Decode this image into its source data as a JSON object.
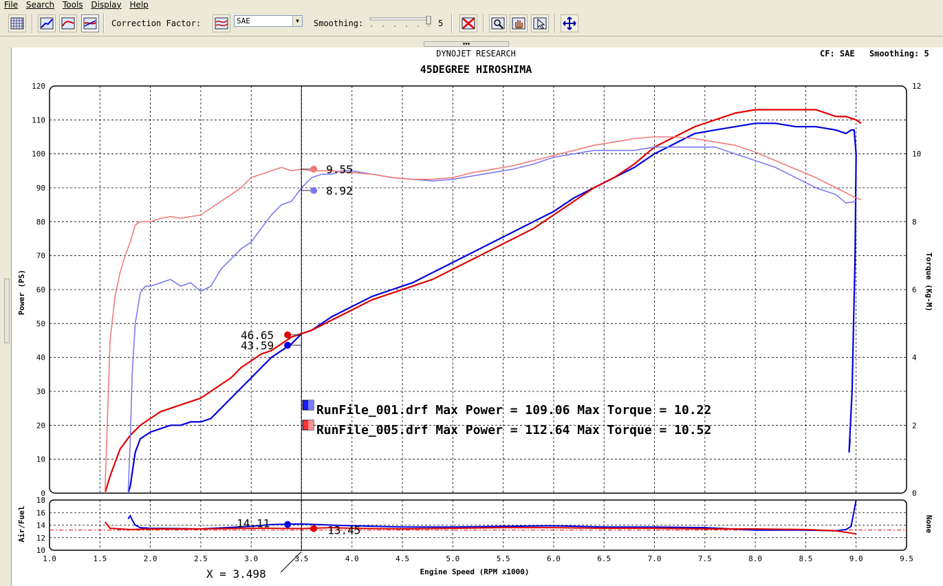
{
  "menu": {
    "items": [
      "File",
      "Search",
      "Tools",
      "Display",
      "Help"
    ]
  },
  "toolbar": {
    "correction_label": "Correction Factor:",
    "correction_value": "SAE",
    "smoothing_label": "Smoothing:",
    "smoothing_value": "5",
    "icons": [
      "grid-icon",
      "power-graph-icon",
      "torque-graph-icon",
      "afr-graph-icon",
      "correction-icon",
      "clear-icon",
      "zoom-icon",
      "pan-hand-icon",
      "pointer-icon",
      "fit-icon"
    ]
  },
  "header": {
    "brand": "DYNOJET RESEARCH",
    "title": "45DEGREE HIROSHIMA",
    "cf_text": "CF: SAE",
    "smoothing_text": "Smoothing: 5"
  },
  "cursor": {
    "x_readout": "X = 3.498",
    "rpm": 3.498
  },
  "colors": {
    "run1": "#0000e0",
    "run2": "#e00000",
    "run1_light": "#7a7af0",
    "run2_light": "#f07a7a"
  },
  "legend": [
    {
      "text": "RunFile_001.drf Max Power = 109.06  Max Torque = 10.22",
      "color": "#1a1aff"
    },
    {
      "text": "RunFile_005.drf Max Power = 112.64  Max Torque = 10.52",
      "color": "#ff3030"
    }
  ],
  "chart_data": [
    {
      "type": "line",
      "xlabel": "Engine Speed (RPM x1000)",
      "ylabel": "Power (PS)",
      "y2label": "Torque (Kg-M)",
      "xlim": [
        1.0,
        9.5
      ],
      "ylim": [
        0,
        120
      ],
      "y2lim": [
        0,
        12
      ],
      "xticks": [
        "1.0",
        "1.5",
        "2.0",
        "2.5",
        "3.0",
        "3.5",
        "4.0",
        "4.5",
        "5.0",
        "5.5",
        "6.0",
        "6.5",
        "7.0",
        "7.5",
        "8.0",
        "8.5",
        "9.0",
        "9.5"
      ],
      "yticks": [
        "0",
        "10",
        "20",
        "30",
        "40",
        "50",
        "60",
        "70",
        "80",
        "90",
        "100",
        "110",
        "120"
      ],
      "y2ticks": [
        "0",
        "2",
        "4",
        "6",
        "8",
        "10",
        "12"
      ],
      "grid": true,
      "series": [
        {
          "name": "RunFile_001.drf",
          "metric": "power",
          "color": "#0000e0",
          "x": [
            1.78,
            1.8,
            1.85,
            1.9,
            2.0,
            2.1,
            2.2,
            2.3,
            2.4,
            2.5,
            2.6,
            2.7,
            2.8,
            2.9,
            3.0,
            3.1,
            3.2,
            3.3,
            3.4,
            3.5,
            3.6,
            3.8,
            4.0,
            4.2,
            4.4,
            4.6,
            4.8,
            5.0,
            5.2,
            5.4,
            5.6,
            5.8,
            6.0,
            6.2,
            6.4,
            6.6,
            6.8,
            7.0,
            7.2,
            7.4,
            7.6,
            7.8,
            8.0,
            8.2,
            8.4,
            8.6,
            8.8,
            8.9,
            8.95,
            8.98,
            9.0,
            8.99,
            8.96,
            8.93,
            8.94
          ],
          "y": [
            0,
            2,
            12,
            16,
            18,
            19,
            20,
            20,
            21,
            21,
            22,
            25,
            28,
            31,
            34,
            37,
            40,
            42,
            44,
            47,
            48,
            52,
            55,
            58,
            60,
            62,
            65,
            68,
            71,
            74,
            77,
            80,
            83,
            87,
            90,
            93,
            96,
            100,
            103,
            106,
            107,
            108,
            109,
            109,
            108,
            108,
            107,
            106,
            107,
            107,
            100,
            70,
            30,
            12,
            16
          ]
        },
        {
          "name": "RunFile_005.drf",
          "metric": "power",
          "color": "#e00000",
          "x": [
            1.55,
            1.6,
            1.7,
            1.8,
            1.9,
            2.0,
            2.1,
            2.2,
            2.3,
            2.4,
            2.5,
            2.6,
            2.7,
            2.8,
            2.9,
            3.0,
            3.1,
            3.2,
            3.3,
            3.4,
            3.5,
            3.6,
            3.8,
            4.0,
            4.2,
            4.4,
            4.6,
            4.8,
            5.0,
            5.2,
            5.4,
            5.6,
            5.8,
            6.0,
            6.2,
            6.4,
            6.6,
            6.8,
            7.0,
            7.2,
            7.4,
            7.6,
            7.8,
            8.0,
            8.2,
            8.4,
            8.6,
            8.8,
            8.9,
            9.0,
            9.05
          ],
          "y": [
            0,
            5,
            13,
            17,
            20,
            22,
            24,
            25,
            26,
            27,
            28,
            30,
            32,
            34,
            37,
            39,
            41,
            42,
            44,
            46,
            47,
            48,
            51,
            54,
            57,
            59,
            61,
            63,
            66,
            69,
            72,
            75,
            78,
            82,
            86,
            90,
            93,
            97,
            102,
            105,
            108,
            110,
            112,
            113,
            113,
            113,
            113,
            111,
            111,
            110,
            109
          ]
        },
        {
          "name": "RunFile_001.drf",
          "metric": "torque",
          "color": "#7a7af0",
          "x": [
            1.78,
            1.8,
            1.82,
            1.85,
            1.9,
            1.95,
            2.0,
            2.1,
            2.2,
            2.3,
            2.4,
            2.5,
            2.6,
            2.7,
            2.8,
            2.9,
            3.0,
            3.1,
            3.2,
            3.3,
            3.4,
            3.5,
            3.6,
            3.7,
            3.8,
            3.9,
            4.0,
            4.2,
            4.4,
            4.6,
            4.8,
            5.0,
            5.2,
            5.4,
            5.6,
            5.8,
            6.0,
            6.2,
            6.4,
            6.6,
            6.8,
            7.0,
            7.2,
            7.4,
            7.6,
            7.8,
            8.0,
            8.2,
            8.4,
            8.6,
            8.8,
            8.9,
            9.0
          ],
          "y": [
            0,
            1.5,
            3.5,
            5.0,
            5.9,
            6.1,
            6.1,
            6.2,
            6.3,
            6.1,
            6.2,
            5.95,
            6.1,
            6.6,
            6.9,
            7.2,
            7.4,
            7.8,
            8.2,
            8.5,
            8.6,
            9.0,
            9.3,
            9.4,
            9.4,
            9.5,
            9.5,
            9.4,
            9.3,
            9.25,
            9.2,
            9.25,
            9.35,
            9.45,
            9.55,
            9.7,
            9.9,
            10.0,
            10.1,
            10.1,
            10.1,
            10.2,
            10.2,
            10.2,
            10.2,
            10.0,
            9.8,
            9.6,
            9.3,
            9.0,
            8.8,
            8.55,
            8.6
          ]
        },
        {
          "name": "RunFile_005.drf",
          "metric": "torque",
          "color": "#f07a7a",
          "x": [
            1.55,
            1.6,
            1.65,
            1.7,
            1.75,
            1.8,
            1.85,
            1.9,
            1.95,
            2.0,
            2.1,
            2.2,
            2.3,
            2.4,
            2.5,
            2.6,
            2.7,
            2.8,
            2.9,
            3.0,
            3.1,
            3.2,
            3.3,
            3.4,
            3.5,
            3.6,
            3.8,
            4.0,
            4.2,
            4.4,
            4.6,
            4.8,
            5.0,
            5.2,
            5.4,
            5.6,
            5.8,
            6.0,
            6.2,
            6.4,
            6.6,
            6.8,
            7.0,
            7.2,
            7.4,
            7.6,
            7.8,
            8.0,
            8.2,
            8.4,
            8.6,
            8.8,
            9.0,
            9.05
          ],
          "y": [
            0,
            4.5,
            5.8,
            6.5,
            7.0,
            7.4,
            7.9,
            8.0,
            8.0,
            8.0,
            8.1,
            8.15,
            8.1,
            8.15,
            8.2,
            8.4,
            8.6,
            8.8,
            9.0,
            9.3,
            9.4,
            9.5,
            9.6,
            9.5,
            9.55,
            9.5,
            9.5,
            9.45,
            9.4,
            9.3,
            9.25,
            9.25,
            9.3,
            9.45,
            9.55,
            9.65,
            9.8,
            9.95,
            10.1,
            10.25,
            10.35,
            10.45,
            10.5,
            10.5,
            10.45,
            10.35,
            10.25,
            10.05,
            9.8,
            9.55,
            9.3,
            9.0,
            8.7,
            8.65
          ]
        }
      ],
      "cursor_values": [
        {
          "series": "RunFile_005.drf",
          "metric": "torque",
          "text": "9.55",
          "y": 9.55
        },
        {
          "series": "RunFile_001.drf",
          "metric": "torque",
          "text": "8.92",
          "y": 8.92
        },
        {
          "series": "RunFile_005.drf",
          "metric": "power",
          "text": "46.65",
          "y": 46.65
        },
        {
          "series": "RunFile_001.drf",
          "metric": "power",
          "text": "43.59",
          "y": 43.59
        }
      ]
    },
    {
      "type": "line",
      "ylabel": "Air/Fuel",
      "y2label": "None",
      "xlim": [
        1.0,
        9.5
      ],
      "ylim": [
        10,
        18
      ],
      "yticks": [
        "10",
        "12",
        "14",
        "16",
        "18"
      ],
      "reference_line": 13.2,
      "series": [
        {
          "name": "RunFile_001.drf",
          "color": "#0000e0",
          "x": [
            1.78,
            1.8,
            1.82,
            1.85,
            1.9,
            2.0,
            2.5,
            3.0,
            3.2,
            3.5,
            3.8,
            4.0,
            4.5,
            5.0,
            5.5,
            6.0,
            6.5,
            7.0,
            7.5,
            8.0,
            8.5,
            8.8,
            8.9,
            8.95,
            9.0
          ],
          "y": [
            15,
            15.5,
            14.8,
            14,
            13.6,
            13.5,
            13.4,
            13.8,
            14.1,
            14.2,
            14.0,
            13.9,
            13.7,
            13.7,
            13.8,
            13.9,
            13.7,
            13.7,
            13.6,
            13.2,
            13.2,
            13.1,
            13.3,
            13.8,
            18
          ]
        },
        {
          "name": "RunFile_005.drf",
          "color": "#e00000",
          "x": [
            1.55,
            1.6,
            1.7,
            1.8,
            2.0,
            2.5,
            3.0,
            3.2,
            3.5,
            3.8,
            4.0,
            4.5,
            5.0,
            5.5,
            6.0,
            6.5,
            7.0,
            7.5,
            8.0,
            8.5,
            8.8,
            9.0
          ],
          "y": [
            14.5,
            13.5,
            13.4,
            13.3,
            13.4,
            13.4,
            13.5,
            13.5,
            13.45,
            13.6,
            13.5,
            13.4,
            13.5,
            13.6,
            13.6,
            13.5,
            13.5,
            13.4,
            13.4,
            13.3,
            13.1,
            12.6
          ]
        }
      ],
      "cursor_values": [
        {
          "series": "RunFile_001.drf",
          "text": "14.11",
          "y": 14.11
        },
        {
          "series": "RunFile_005.drf",
          "text": "13.45",
          "y": 13.45
        }
      ]
    }
  ]
}
